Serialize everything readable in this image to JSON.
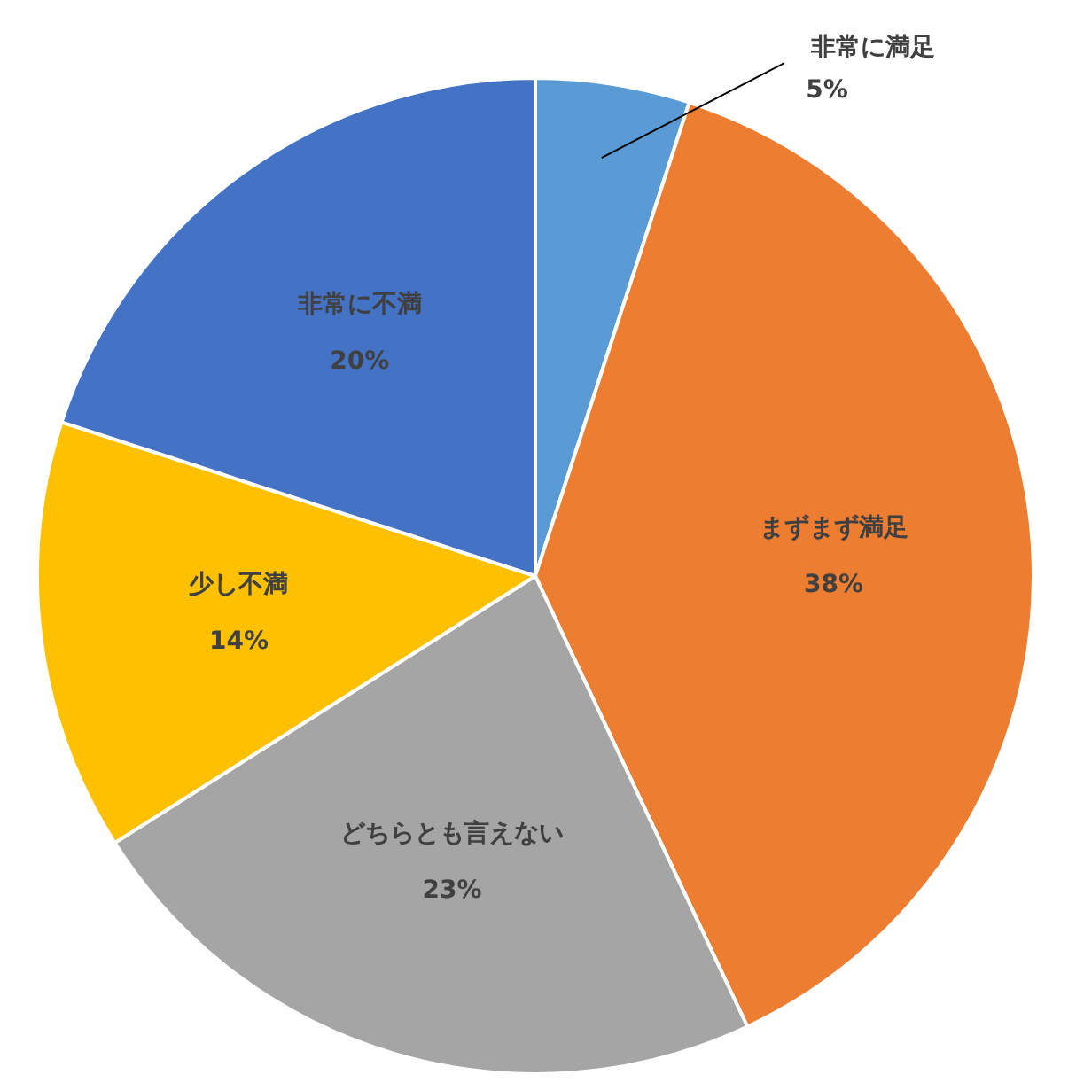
{
  "chart_data": {
    "type": "pie",
    "categories": [
      "非常に満足",
      "まずまず満足",
      "どちらとも言えない",
      "少し不満",
      "非常に不満"
    ],
    "values": [
      5,
      38,
      23,
      14,
      20
    ],
    "colors": [
      "#5b9bd5",
      "#ed7d31",
      "#a5a5a5",
      "#ffc000",
      "#4472c4"
    ],
    "value_labels": [
      "5%",
      "38%",
      "23%",
      "14%",
      "20%"
    ],
    "legend": false
  }
}
